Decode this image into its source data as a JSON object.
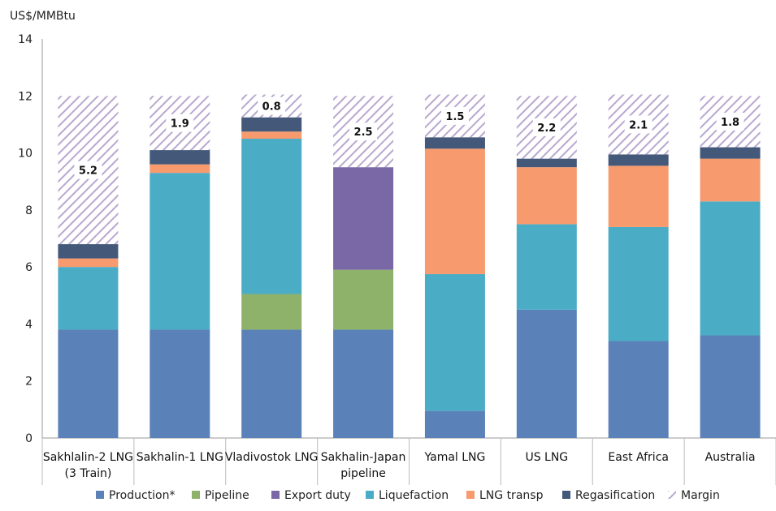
{
  "chart_data": {
    "type": "bar",
    "stacked": true,
    "title": "",
    "ylabel": "US$/MMBtu",
    "xlabel": "",
    "ylim": [
      0,
      14
    ],
    "yticks": [
      0,
      2,
      4,
      6,
      8,
      10,
      12,
      14
    ],
    "grid": false,
    "legend_position": "bottom",
    "categories": [
      [
        "Sakhlalin-2 LNG",
        "(3 Train)"
      ],
      [
        "Sakhalin-1 LNG"
      ],
      [
        "Vladivostok LNG"
      ],
      [
        "Sakhalin-Japan",
        "pipeline"
      ],
      [
        "Yamal LNG"
      ],
      [
        "US LNG"
      ],
      [
        "East Africa"
      ],
      [
        "Australia"
      ]
    ],
    "series": [
      {
        "name": "Production*",
        "color": "#5b82b8",
        "pattern": "solid",
        "values": [
          3.8,
          3.8,
          3.8,
          3.8,
          0.95,
          4.5,
          3.4,
          3.6
        ]
      },
      {
        "name": "Pipeline",
        "color": "#8fb26a",
        "pattern": "solid",
        "values": [
          0,
          0,
          1.25,
          2.1,
          0,
          0,
          0,
          0
        ]
      },
      {
        "name": "Export duty",
        "color": "#7a68a6",
        "pattern": "solid",
        "values": [
          0,
          0,
          0,
          3.6,
          0,
          0,
          0,
          0
        ]
      },
      {
        "name": "Liquefaction",
        "color": "#4bacc6",
        "pattern": "solid",
        "values": [
          2.2,
          5.5,
          5.45,
          0,
          4.8,
          3.0,
          4.0,
          4.7
        ]
      },
      {
        "name": "LNG transp",
        "color": "#f79a6e",
        "pattern": "solid",
        "values": [
          0.3,
          0.3,
          0.25,
          0,
          4.4,
          2.0,
          2.15,
          1.5
        ]
      },
      {
        "name": "Regasification",
        "color": "#44587a",
        "pattern": "solid",
        "values": [
          0.5,
          0.5,
          0.5,
          0,
          0.4,
          0.3,
          0.4,
          0.4
        ]
      },
      {
        "name": "Margin",
        "color": "#b8a8cf",
        "pattern": "hatch",
        "values": [
          5.2,
          1.9,
          0.8,
          2.5,
          1.5,
          2.2,
          2.1,
          1.8
        ]
      }
    ],
    "data_labels": [
      "5.2",
      "1.9",
      "0.8",
      "2.5",
      "1.5",
      "2.2",
      "2.1",
      "1.8"
    ]
  }
}
